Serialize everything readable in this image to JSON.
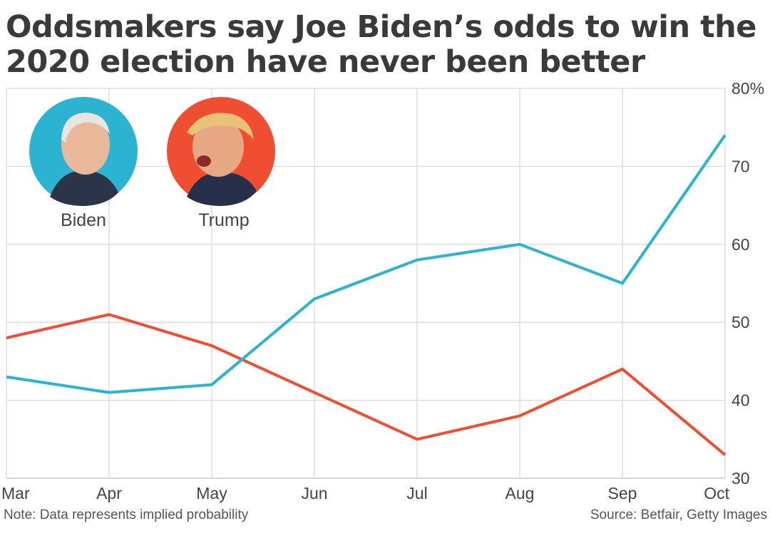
{
  "title": "Oddsmakers say Joe Biden’s odds to win the 2020 election have never been better",
  "note": "Note: Data represents implied probability",
  "source": "Source: Betfair, Getty Images",
  "portraits": [
    {
      "label": "Biden",
      "color": "#2bb3d1"
    },
    {
      "label": "Trump",
      "color": "#f04e33"
    }
  ],
  "chart_data": {
    "type": "line",
    "categories": [
      "Mar",
      "Apr",
      "May",
      "Jun",
      "Jul",
      "Aug",
      "Sep",
      "Oct"
    ],
    "series": [
      {
        "name": "Biden",
        "color": "#2bb3d1",
        "values": [
          43,
          41,
          42,
          53,
          58,
          60,
          55,
          74
        ]
      },
      {
        "name": "Trump",
        "color": "#f04e33",
        "values": [
          48,
          51,
          47,
          41,
          35,
          38,
          44,
          33
        ]
      }
    ],
    "ylim": [
      30,
      80
    ],
    "yticks": [
      30,
      40,
      50,
      60,
      70,
      80
    ],
    "ytick_labels": [
      "30",
      "40",
      "50",
      "60",
      "70",
      "80%"
    ],
    "yaxis_position": "right",
    "grid": true
  }
}
